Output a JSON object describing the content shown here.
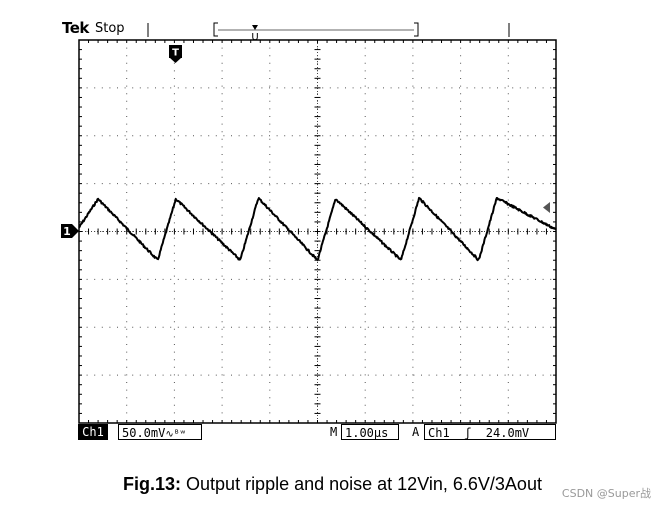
{
  "scope": {
    "brand": "Tek",
    "state": "Stop",
    "channel_marker": "1",
    "trigger_marker": "T",
    "status": {
      "channel": "Ch1",
      "volts_per_div": "50.0mV",
      "bw_symbol": "∿ᴮʷ",
      "m_label": "M",
      "time_per_div": "1.00µs",
      "a_label": "A",
      "trigger_text": "Ch1  ʃ  24.0mV"
    }
  },
  "caption": {
    "label": "Fig.13:",
    "text": " Output ripple and noise at 12Vin, 6.6V/3Aout"
  },
  "watermark": "CSDN @Super战",
  "chart_data": {
    "type": "line",
    "title": "",
    "xlabel": "",
    "ylabel": "",
    "x_unit": "µs",
    "y_unit": "mV",
    "xlim": [
      -5,
      5
    ],
    "ylim": [
      -200,
      200
    ],
    "divisions": {
      "x": 10,
      "y": 8
    },
    "grid": true,
    "series": [
      {
        "name": "",
        "color": "#000000",
        "x": [
          -5.0,
          -4.6,
          -3.35,
          -2.97,
          -1.62,
          -1.24,
          0.0,
          0.38,
          1.75,
          2.13,
          3.38,
          3.76,
          5.0
        ],
        "y": [
          4,
          34,
          -30,
          34,
          -30,
          35,
          -30,
          34,
          -30,
          35,
          -30,
          35,
          2
        ]
      }
    ]
  }
}
